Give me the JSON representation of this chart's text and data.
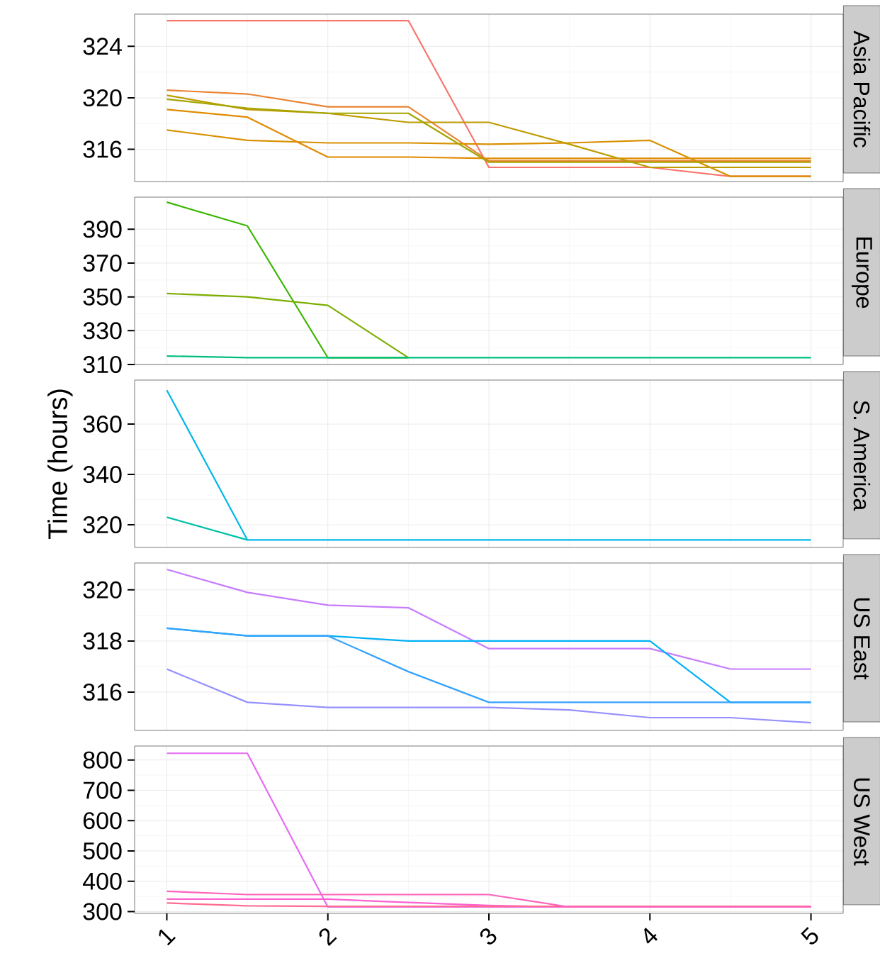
{
  "chart_data": [
    {
      "type": "line",
      "title": "Asia Pacific",
      "x": [
        1,
        1.5,
        2,
        2.5,
        3,
        3.5,
        4,
        4.5,
        5
      ],
      "xlim": [
        0.8,
        5.2
      ],
      "xticks": [
        1,
        2,
        3,
        4,
        5
      ],
      "ylim": [
        313.5,
        326.5
      ],
      "yticks": [
        316,
        320,
        324
      ],
      "grid": true,
      "tick_labels": "y",
      "series": [
        {
          "color": "#F8766D",
          "values": [
            326.0,
            326.0,
            326.0,
            326.0,
            314.6,
            314.6,
            314.6,
            313.9,
            313.9
          ]
        },
        {
          "color": "#EA8331",
          "values": [
            320.6,
            320.3,
            319.3,
            319.3,
            315.1,
            315.1,
            315.1,
            315.1,
            315.1
          ]
        },
        {
          "color": "#E18A00",
          "values": [
            319.1,
            318.5,
            315.4,
            315.4,
            315.3,
            315.3,
            315.3,
            315.3,
            315.3
          ]
        },
        {
          "color": "#D89000",
          "values": [
            317.5,
            316.7,
            316.5,
            316.5,
            316.4,
            316.5,
            316.7,
            313.9,
            313.9
          ]
        },
        {
          "color": "#BE9C00",
          "values": [
            320.2,
            319.1,
            318.8,
            318.1,
            318.1,
            316.4,
            314.6,
            314.6,
            314.6
          ]
        },
        {
          "color": "#A3A500",
          "values": [
            319.9,
            319.2,
            318.8,
            318.8,
            315.0,
            315.0,
            315.0,
            315.0,
            315.0
          ]
        }
      ]
    },
    {
      "type": "line",
      "title": "Europe",
      "x": [
        1,
        1.5,
        2,
        2.5,
        3,
        3.5,
        4,
        4.5,
        5
      ],
      "xlim": [
        0.8,
        5.2
      ],
      "xticks": [
        1,
        2,
        3,
        4,
        5
      ],
      "ylim": [
        310,
        409
      ],
      "yticks": [
        310,
        330,
        350,
        370,
        390
      ],
      "grid": true,
      "tick_labels": "y",
      "series": [
        {
          "color": "#39B600",
          "values": [
            406,
            392,
            314,
            314,
            null,
            null,
            null,
            null,
            null
          ]
        },
        {
          "color": "#7CAE00",
          "values": [
            352,
            350,
            345,
            314,
            null,
            null,
            null,
            null,
            null
          ]
        },
        {
          "color": "#00BF7D",
          "values": [
            315,
            314,
            314,
            314,
            314,
            314,
            314,
            314,
            314
          ]
        }
      ]
    },
    {
      "type": "line",
      "title": "S. America",
      "ylabel": "Time (hours)",
      "x": [
        1,
        1.5,
        2,
        2.5,
        3,
        3.5,
        4,
        4.5,
        5
      ],
      "xlim": [
        0.8,
        5.2
      ],
      "xticks": [
        1,
        2,
        3,
        4,
        5
      ],
      "ylim": [
        311,
        377.5
      ],
      "yticks": [
        320,
        340,
        360
      ],
      "grid": true,
      "tick_labels": "y",
      "series": [
        {
          "color": "#00C1A9",
          "values": [
            323,
            314,
            null,
            null,
            null,
            null,
            null,
            null,
            null
          ]
        },
        {
          "color": "#00B8E7",
          "values": [
            373.5,
            314,
            314,
            314,
            314,
            314,
            314,
            314,
            314
          ]
        }
      ]
    },
    {
      "type": "line",
      "title": "US East",
      "x": [
        1,
        1.5,
        2,
        2.5,
        3,
        3.5,
        4,
        4.5,
        5
      ],
      "xlim": [
        0.8,
        5.2
      ],
      "xticks": [
        1,
        2,
        3,
        4,
        5
      ],
      "ylim": [
        314.5,
        321.05
      ],
      "yticks": [
        316,
        318,
        320
      ],
      "grid": true,
      "tick_labels": "y",
      "series": [
        {
          "color": "#C77CFF",
          "values": [
            320.8,
            319.9,
            319.4,
            319.3,
            317.7,
            317.7,
            317.7,
            316.9,
            316.9
          ]
        },
        {
          "color": "#00B0F6",
          "values": [
            318.5,
            318.2,
            318.2,
            318.0,
            318.0,
            318.0,
            318.0,
            315.6,
            315.6
          ]
        },
        {
          "color": "#35A2FF",
          "values": [
            318.5,
            318.2,
            318.2,
            316.8,
            315.6,
            315.6,
            315.6,
            315.6,
            315.6
          ]
        },
        {
          "color": "#9590FF",
          "values": [
            316.9,
            315.6,
            315.4,
            315.4,
            315.4,
            315.3,
            315.0,
            315.0,
            314.8
          ]
        }
      ]
    },
    {
      "type": "line",
      "title": "US West",
      "x": [
        1,
        1.5,
        2,
        2.5,
        3,
        3.5,
        4,
        4.5,
        5
      ],
      "xlim": [
        0.8,
        5.2
      ],
      "xticks": [
        1,
        2,
        3,
        4,
        5
      ],
      "ylim": [
        294,
        846
      ],
      "yticks": [
        300,
        400,
        500,
        600,
        700,
        800
      ],
      "grid": true,
      "series": [
        {
          "color": "#E76BF3",
          "values": [
            822,
            822,
            315,
            315,
            315,
            315,
            315,
            null,
            null
          ]
        },
        {
          "color": "#FD61D1",
          "values": [
            341,
            341,
            341,
            330,
            320,
            315,
            315,
            315,
            315
          ]
        },
        {
          "color": "#FF6C91",
          "values": [
            328,
            319,
            317,
            317,
            317,
            317,
            317,
            317,
            317
          ]
        },
        {
          "color": "#FF62BC",
          "values": [
            367,
            356,
            356,
            356,
            356,
            315,
            315,
            315,
            315
          ]
        }
      ]
    }
  ]
}
